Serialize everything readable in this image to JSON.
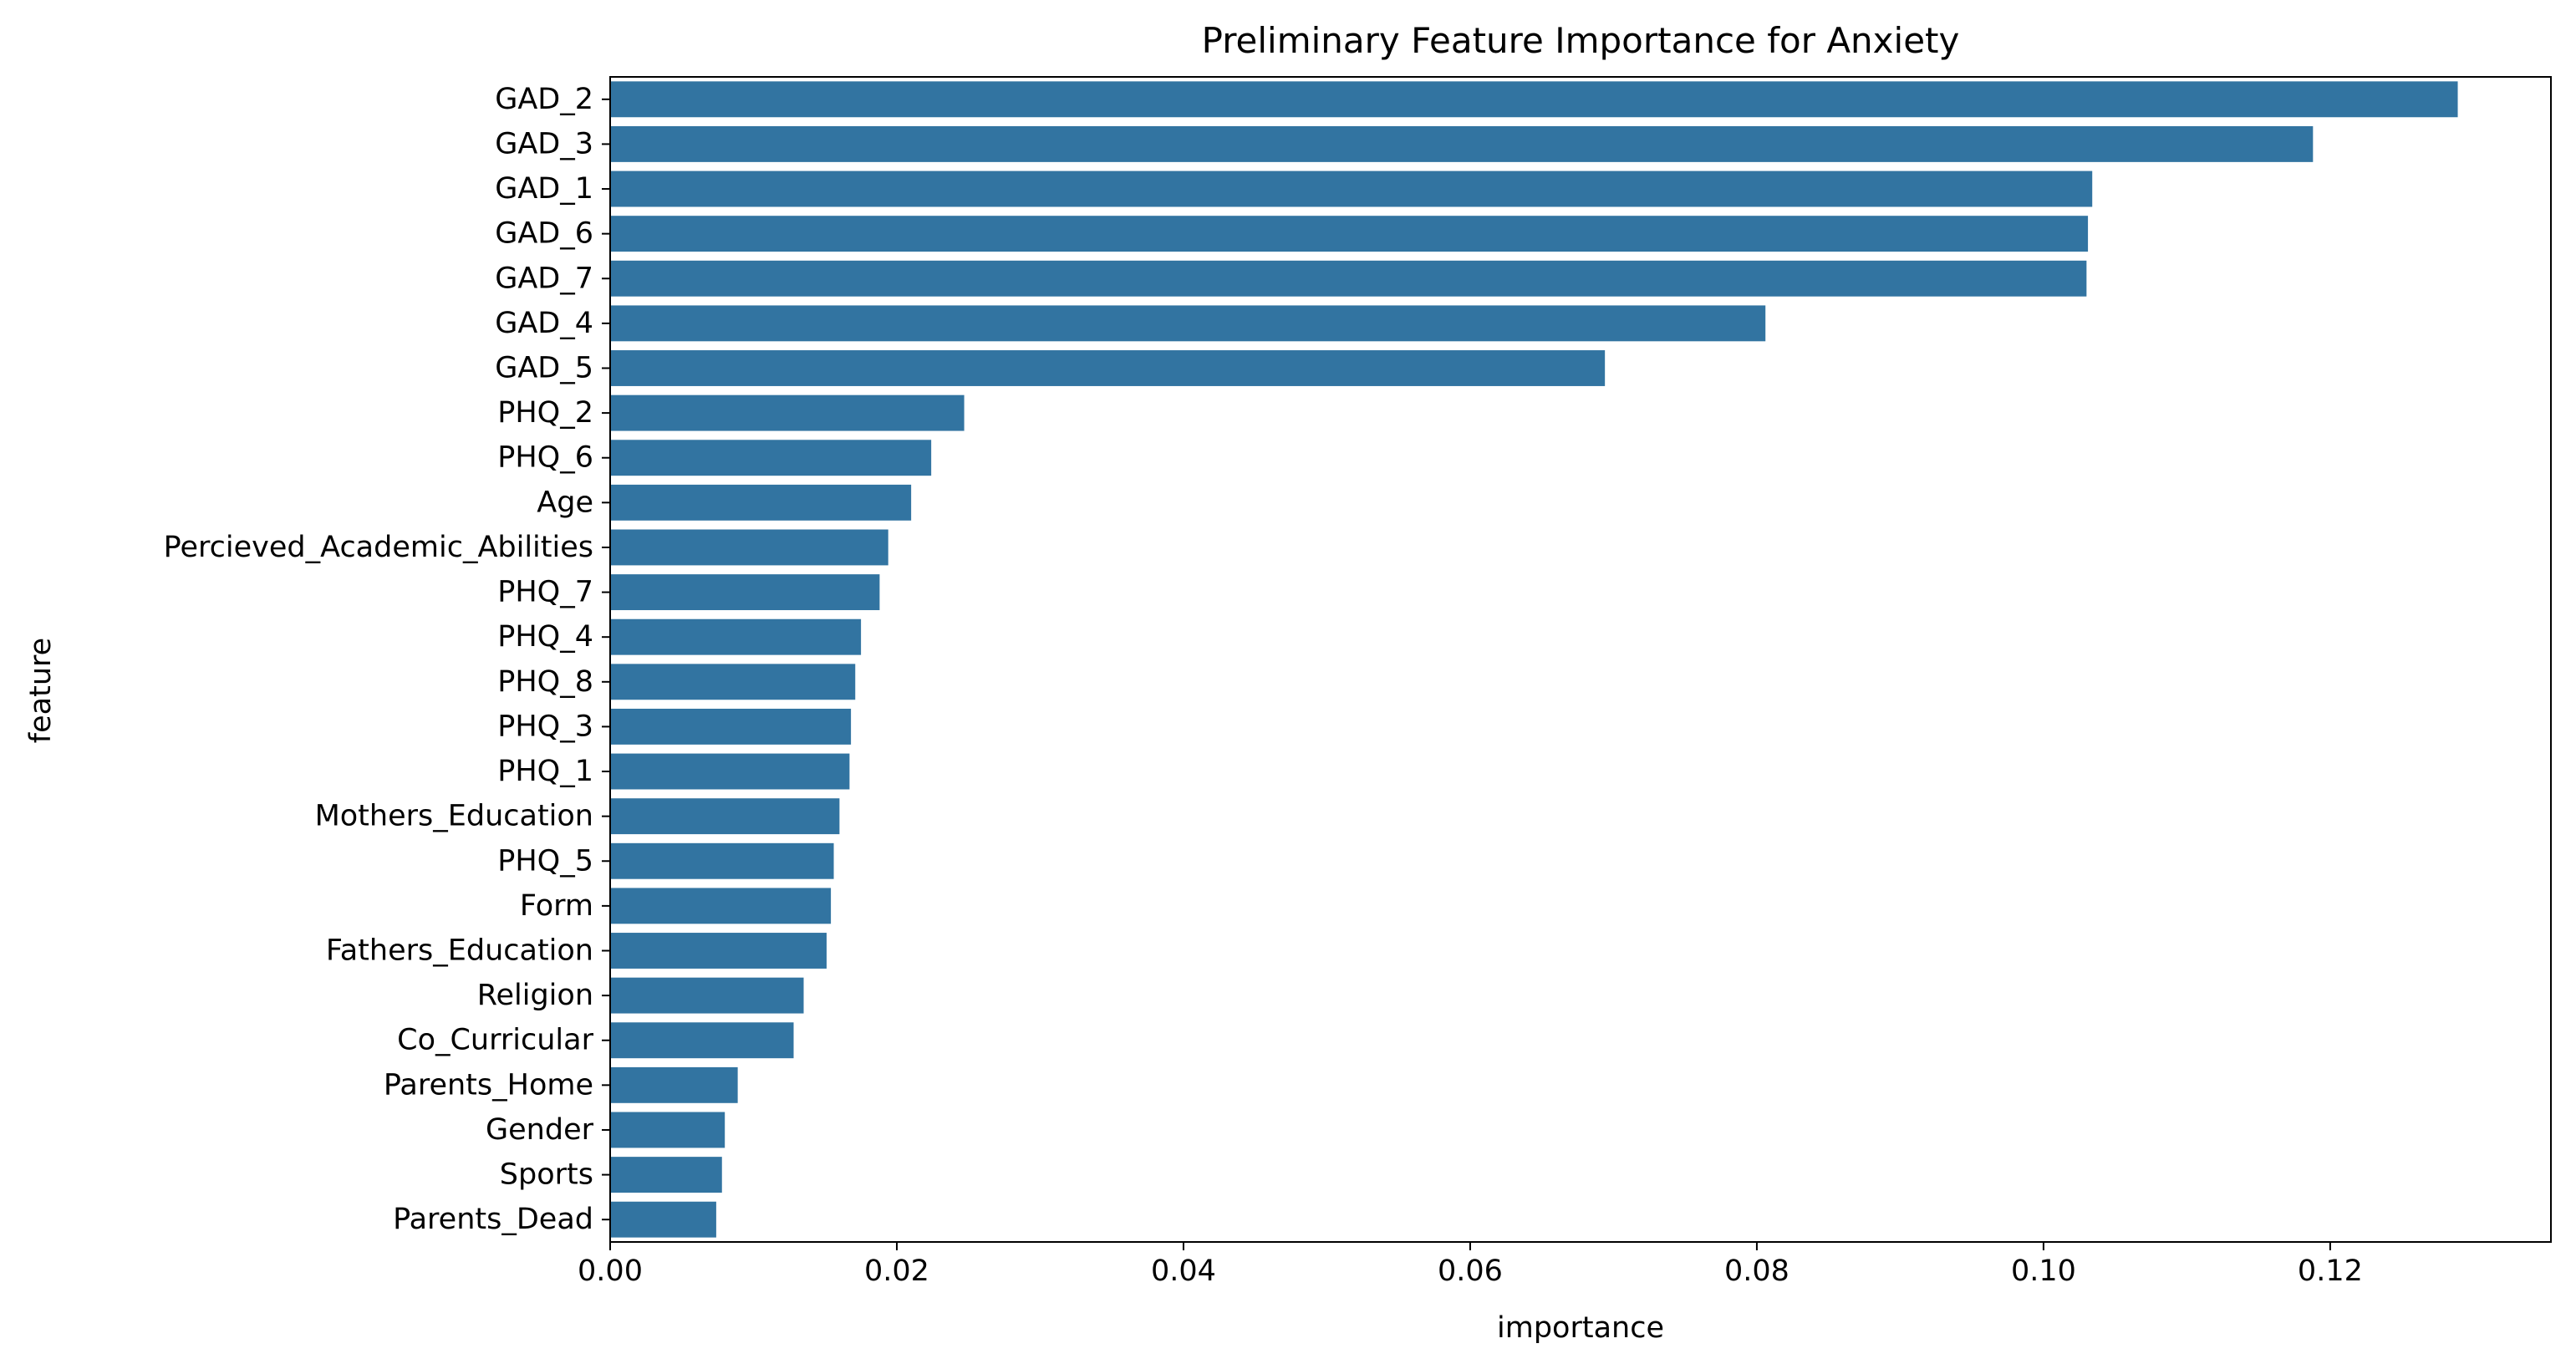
{
  "chart_data": {
    "type": "bar",
    "orientation": "horizontal",
    "title": "Preliminary Feature Importance for Anxiety",
    "xlabel": "importance",
    "ylabel": "feature",
    "xlim": [
      0,
      0.1354
    ],
    "xticks": [
      "0.00",
      "0.02",
      "0.04",
      "0.06",
      "0.08",
      "0.10",
      "0.12"
    ],
    "grid": false,
    "bar_color": "#3274a1",
    "categories": [
      "GAD_2",
      "GAD_3",
      "GAD_1",
      "GAD_6",
      "GAD_7",
      "GAD_4",
      "GAD_5",
      "PHQ_2",
      "PHQ_6",
      "Age",
      "Percieved_Academic_Abilities",
      "PHQ_7",
      "PHQ_4",
      "PHQ_8",
      "PHQ_3",
      "PHQ_1",
      "Mothers_Education",
      "PHQ_5",
      "Form",
      "Fathers_Education",
      "Religion",
      "Co_Curricular",
      "Parents_Home",
      "Gender",
      "Sports",
      "Parents_Dead"
    ],
    "values": [
      0.1289,
      0.1188,
      0.1034,
      0.1031,
      0.103,
      0.0806,
      0.0694,
      0.0247,
      0.0224,
      0.021,
      0.0194,
      0.0188,
      0.0175,
      0.0171,
      0.0168,
      0.0167,
      0.016,
      0.0156,
      0.0154,
      0.0151,
      0.0135,
      0.0128,
      0.0089,
      0.008,
      0.0078,
      0.0074
    ]
  }
}
